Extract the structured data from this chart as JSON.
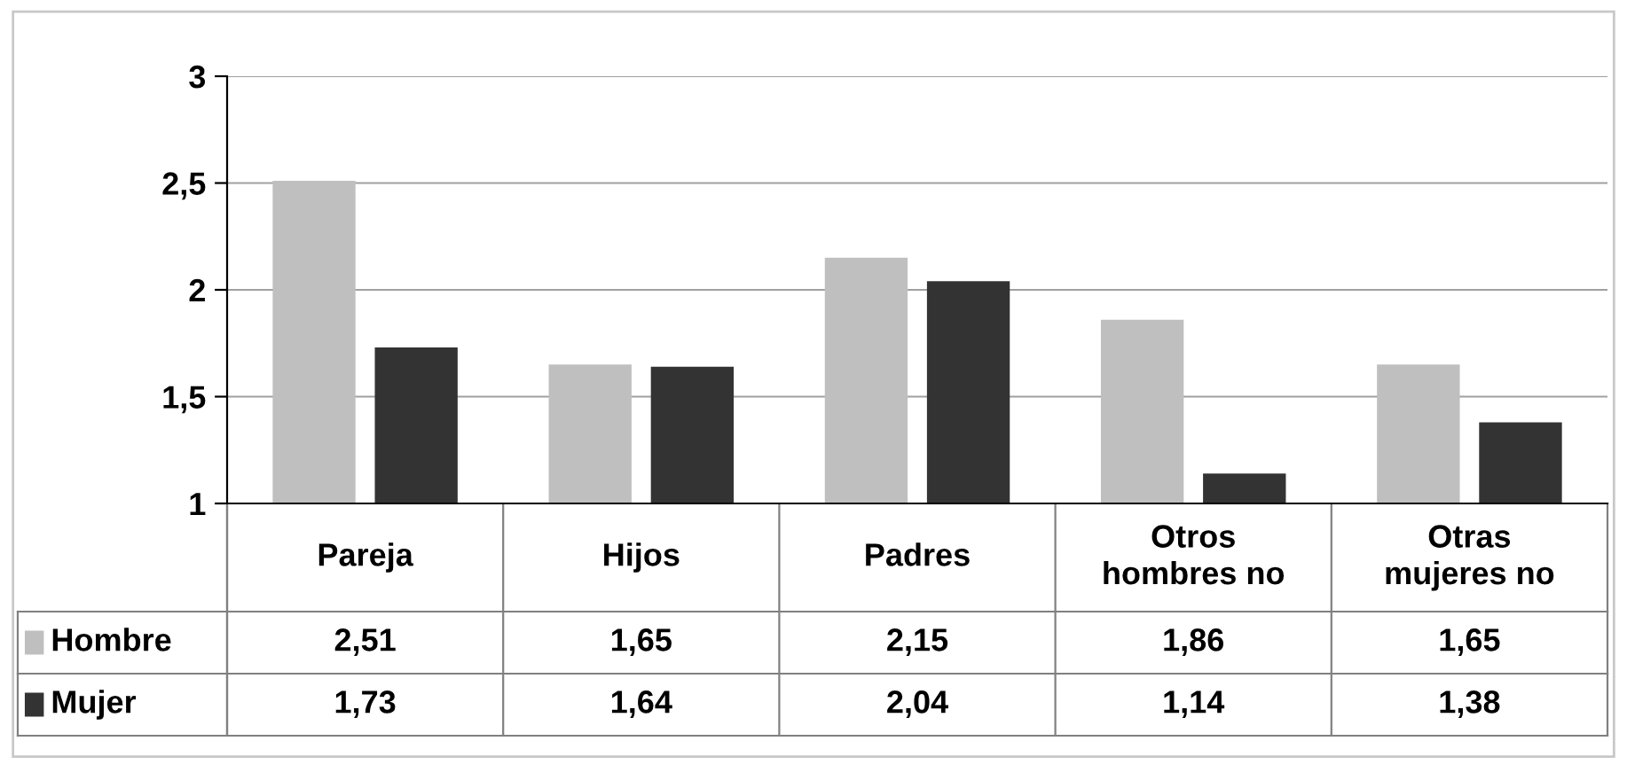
{
  "chart_data": {
    "type": "bar",
    "categories": [
      "Pareja",
      "Hijos",
      "Padres",
      "Otros\nhombres no",
      "Otras\nmujeres no"
    ],
    "series": [
      {
        "name": "Hombre",
        "color": "#bfbfbf",
        "values": [
          2.51,
          1.65,
          2.15,
          1.86,
          1.65
        ],
        "value_labels": [
          "2,51",
          "1,65",
          "2,15",
          "1,86",
          "1,65"
        ]
      },
      {
        "name": "Mujer",
        "color": "#333333",
        "values": [
          1.73,
          1.64,
          2.04,
          1.14,
          1.38
        ],
        "value_labels": [
          "1,73",
          "1,64",
          "2,04",
          "1,14",
          "1,38"
        ]
      }
    ],
    "ylim": [
      1,
      3
    ],
    "yticks": [
      1,
      {
        "value": 1.5,
        "label": "1,5"
      },
      2,
      {
        "value": 2.5,
        "label": "2,5"
      },
      3
    ],
    "grid": "y",
    "legend": "bottom"
  }
}
